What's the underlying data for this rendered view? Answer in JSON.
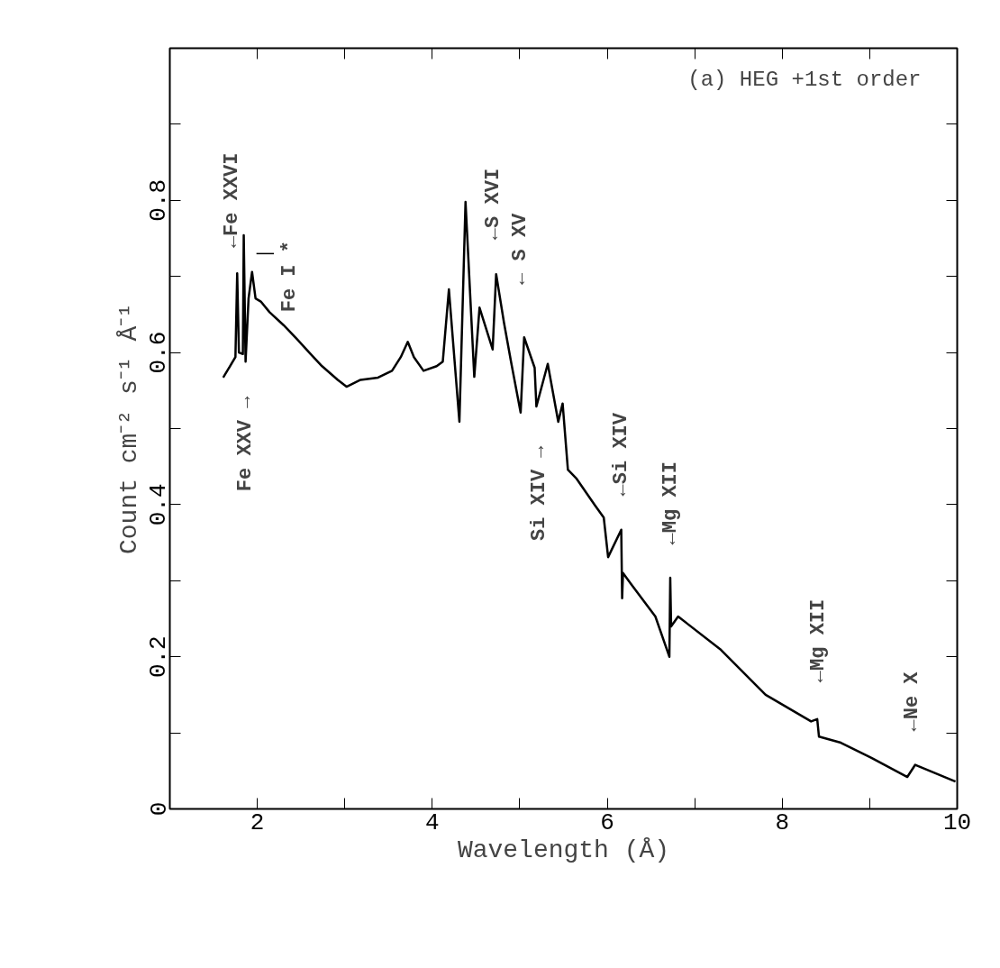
{
  "chart_data": {
    "type": "line",
    "xlabel": "Wavelength (Å)",
    "ylabel": "Count cm⁻² s⁻¹ Å⁻¹",
    "xlim": [
      1,
      10
    ],
    "ylim": [
      0,
      1
    ],
    "xticks": [
      {
        "value": 1,
        "label": null
      },
      2,
      {
        "value": 3,
        "label": null
      },
      4,
      {
        "value": 5,
        "label": null
      },
      6,
      {
        "value": 7,
        "label": null
      },
      8,
      {
        "value": 9,
        "label": null
      },
      10
    ],
    "yticks": [
      0,
      {
        "value": 0.1,
        "label": null
      },
      0.2,
      {
        "value": 0.3,
        "label": null
      },
      0.4,
      {
        "value": 0.5,
        "label": null
      },
      0.6,
      {
        "value": 0.7,
        "label": null
      },
      0.8,
      {
        "value": 0.9,
        "label": null
      }
    ],
    "grid": false,
    "marker": "none",
    "line_style": "solid",
    "series": [
      {
        "color": "#000000",
        "x": [
          1.61,
          1.75,
          1.77,
          1.79,
          1.835,
          1.845,
          1.866,
          1.9,
          1.94,
          1.98,
          2.04,
          2.14,
          2.3,
          2.45,
          2.61,
          2.74,
          2.92,
          3.02,
          3.18,
          3.38,
          3.54,
          3.64,
          3.72,
          3.79,
          3.9,
          4.05,
          4.12,
          4.19,
          4.31,
          4.38,
          4.48,
          4.54,
          4.69,
          4.73,
          4.82,
          4.9,
          5.01,
          5.05,
          5.17,
          5.19,
          5.32,
          5.44,
          5.49,
          5.55,
          5.65,
          5.86,
          5.96,
          6.01,
          6.16,
          6.17,
          6.18,
          6.27,
          6.55,
          6.71,
          6.72,
          6.73,
          6.81,
          7.3,
          7.81,
          8.33,
          8.4,
          8.42,
          8.67,
          9.02,
          9.43,
          9.52,
          9.98
        ],
        "values": [
          0.567,
          0.594,
          0.704,
          0.6,
          0.598,
          0.754,
          0.588,
          0.671,
          0.706,
          0.671,
          0.667,
          0.653,
          0.636,
          0.618,
          0.598,
          0.582,
          0.564,
          0.555,
          0.564,
          0.567,
          0.576,
          0.594,
          0.614,
          0.594,
          0.576,
          0.582,
          0.588,
          0.683,
          0.509,
          0.798,
          0.568,
          0.659,
          0.604,
          0.703,
          0.639,
          0.588,
          0.521,
          0.62,
          0.58,
          0.529,
          0.585,
          0.509,
          0.533,
          0.446,
          0.434,
          0.399,
          0.383,
          0.331,
          0.367,
          0.277,
          0.31,
          0.296,
          0.253,
          0.2,
          0.304,
          0.24,
          0.253,
          0.209,
          0.15,
          0.115,
          0.118,
          0.095,
          0.087,
          0.067,
          0.042,
          0.058,
          0.036
        ]
      }
    ],
    "annotations": [
      "(a) HEG +1st order",
      "←Fe XXVI",
      "Fe XXV →",
      "Fe I *",
      "←S XVI",
      "← S XV",
      "Si XIV →",
      "←Si XIV",
      "←Mg XII",
      "←Mg XII",
      "←Ne X"
    ]
  }
}
